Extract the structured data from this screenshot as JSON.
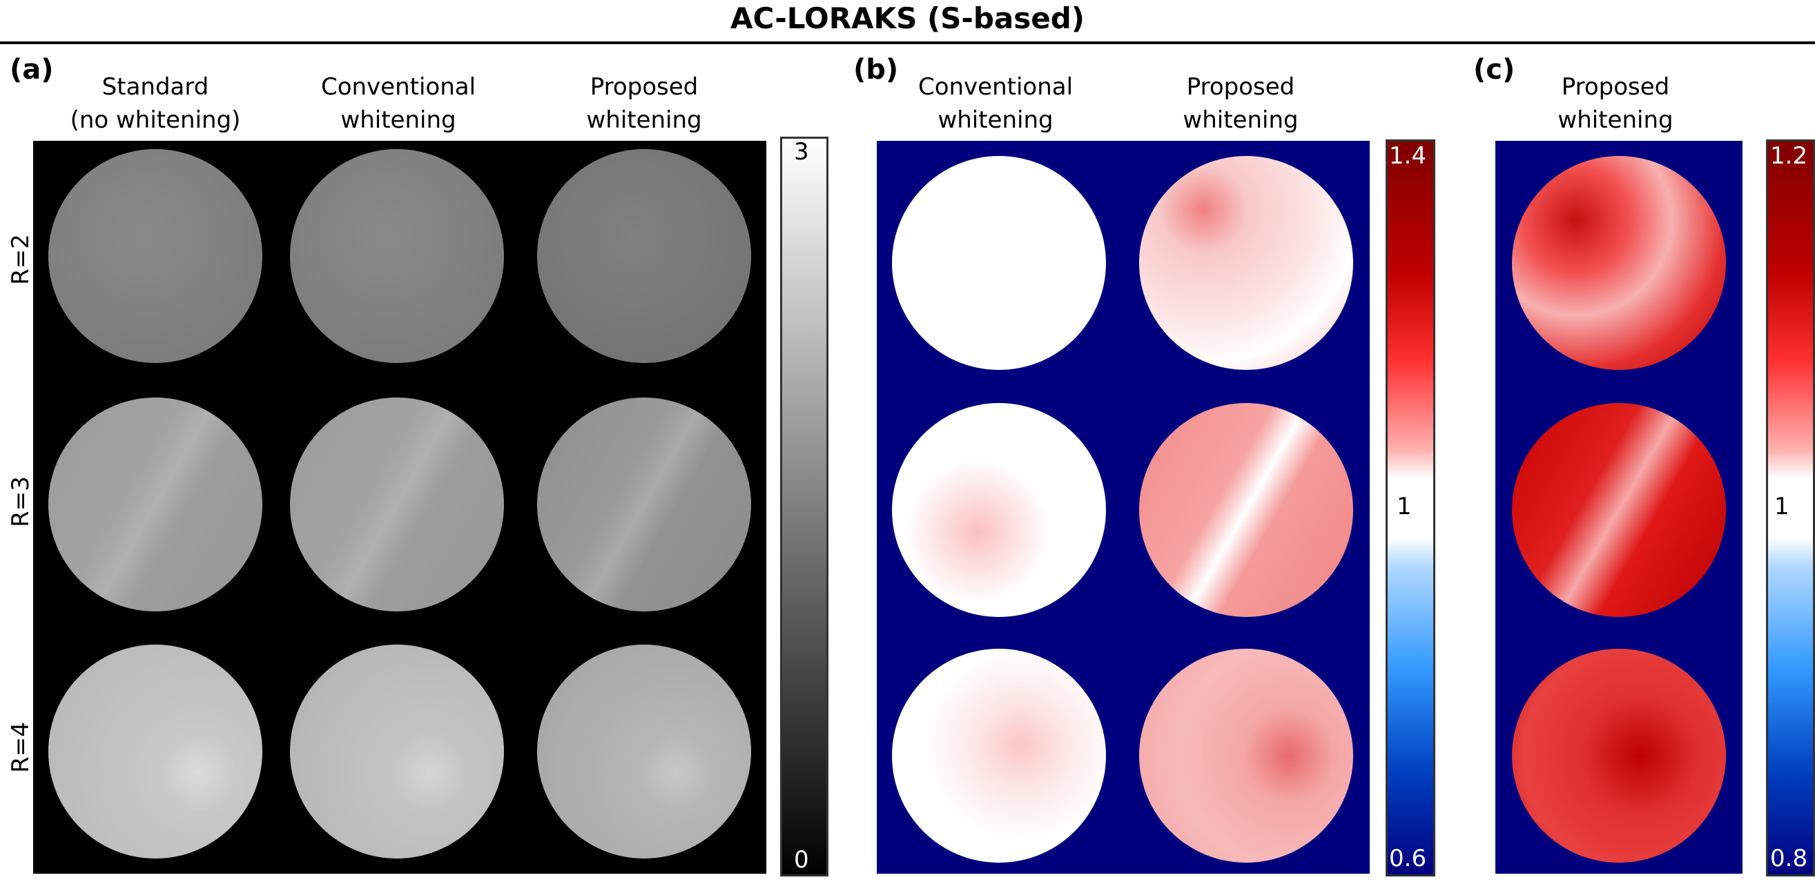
{
  "figure": {
    "title": "AC-LORAKS (S-based)",
    "panels": [
      {
        "label": "(a)",
        "columns": [
          {
            "line1": "Standard",
            "line2": "(no whitening)"
          },
          {
            "line1": "Conventional",
            "line2": "whitening"
          },
          {
            "line1": "Proposed",
            "line2": "whitening"
          }
        ],
        "colorbar": {
          "min": "0",
          "max": "3"
        }
      },
      {
        "label": "(b)",
        "columns": [
          {
            "line1": "Conventional",
            "line2": "whitening"
          },
          {
            "line1": "Proposed",
            "line2": "whitening"
          }
        ],
        "colorbar": {
          "min": "0.6",
          "mid": "1",
          "max": "1.4"
        }
      },
      {
        "label": "(c)",
        "columns": [
          {
            "line1": "Proposed",
            "line2": "whitening"
          }
        ],
        "colorbar": {
          "min": "0.8",
          "mid": "1",
          "max": "1.2"
        }
      }
    ],
    "rows": [
      "R=2",
      "R=3",
      "R=4"
    ]
  },
  "colors": {
    "background_a": "#000000",
    "background_bc": "#00007f",
    "diverging_top": "#7f0000",
    "diverging_mid": "#ffffff",
    "diverging_bottom": "#00007f"
  }
}
